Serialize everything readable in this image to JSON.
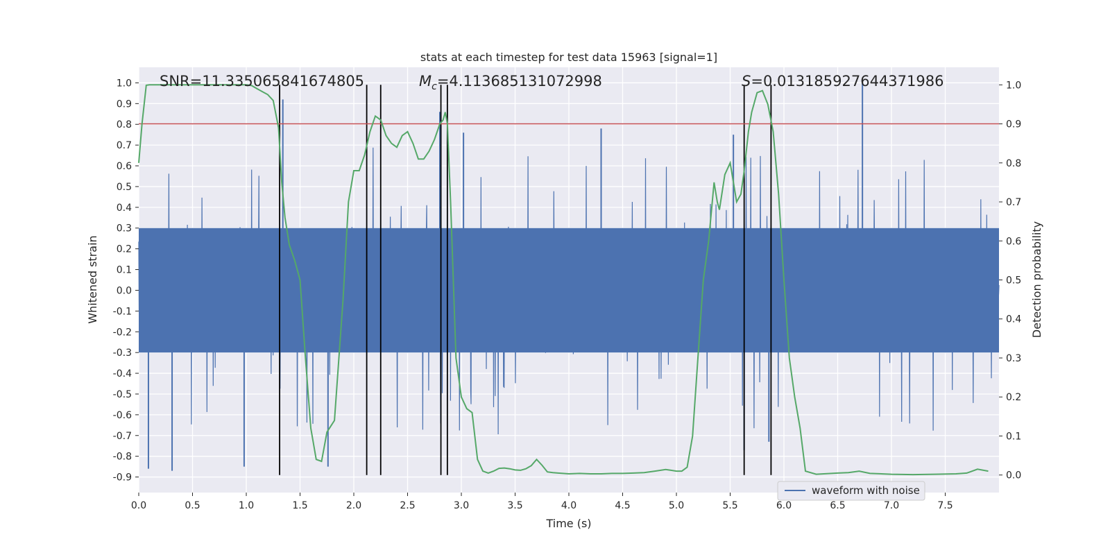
{
  "chart_data": {
    "type": "line",
    "title": "stats at each timestep for test data 15963 [signal=1]",
    "xlabel": "Time (s)",
    "ylabel_left": "Whitened strain",
    "ylabel_right": "Detection probability",
    "xlim": [
      0.0,
      8.0
    ],
    "ylim_left": [
      -0.975,
      1.075
    ],
    "ylim_right": [
      -0.045,
      1.045
    ],
    "xticks": [
      "0.0",
      "0.5",
      "1.0",
      "1.5",
      "2.0",
      "2.5",
      "3.0",
      "3.5",
      "4.0",
      "4.5",
      "5.0",
      "5.5",
      "6.0",
      "6.5",
      "7.0",
      "7.5"
    ],
    "yticks_left": [
      "1.0",
      "0.9",
      "0.8",
      "0.7",
      "0.6",
      "0.5",
      "0.4",
      "0.3",
      "0.2",
      "0.1",
      "0.0",
      "-0.1",
      "-0.2",
      "-0.3",
      "-0.4",
      "-0.5",
      "-0.6",
      "-0.7",
      "-0.8",
      "-0.9"
    ],
    "yticks_right": [
      "1.0",
      "0.9",
      "0.8",
      "0.7",
      "0.6",
      "0.5",
      "0.4",
      "0.3",
      "0.2",
      "0.1",
      "0.0"
    ],
    "grid": true,
    "legend_position": "lower-right",
    "annotations": {
      "snr": "SNR=11.335065841674805",
      "mc_symbol": "M",
      "mc_sub": "c",
      "mc_value": "=4.113685131072998",
      "s_symbol": "S",
      "s_value": "=0.013185927644371986"
    },
    "threshold": {
      "y": 0.9,
      "color": "#c44e52"
    },
    "vertical_lines": [
      1.31,
      2.12,
      2.25,
      2.81,
      2.87,
      5.63,
      5.88
    ],
    "series": [
      {
        "name": "waveform with noise",
        "axis": "left",
        "color": "#4c72b0",
        "description_values": {
          "band_low": -0.3,
          "band_high": 0.3
        },
        "notable_spikes": [
          {
            "x": 1.34,
            "y": 0.92
          },
          {
            "x": 1.76,
            "y": -0.85
          },
          {
            "x": 2.8,
            "y": 0.86
          },
          {
            "x": 3.02,
            "y": 0.76
          },
          {
            "x": 4.3,
            "y": 0.78
          },
          {
            "x": 5.53,
            "y": 0.75
          },
          {
            "x": 6.73,
            "y": 1.0
          },
          {
            "x": 0.09,
            "y": -0.86
          },
          {
            "x": 0.31,
            "y": -0.87
          },
          {
            "x": 0.98,
            "y": -0.85
          },
          {
            "x": 5.63,
            "y": -0.77
          },
          {
            "x": 5.86,
            "y": -0.73
          }
        ]
      },
      {
        "name": "detection probability",
        "axis": "right",
        "color": "#55a868",
        "x": [
          0.0,
          0.03,
          0.07,
          0.1,
          0.13,
          0.2,
          0.3,
          0.5,
          0.7,
          0.9,
          1.0,
          1.05,
          1.1,
          1.2,
          1.25,
          1.3,
          1.33,
          1.36,
          1.4,
          1.45,
          1.5,
          1.55,
          1.6,
          1.65,
          1.7,
          1.75,
          1.82,
          1.9,
          1.95,
          2.0,
          2.05,
          2.1,
          2.15,
          2.2,
          2.25,
          2.3,
          2.35,
          2.4,
          2.45,
          2.5,
          2.55,
          2.6,
          2.65,
          2.7,
          2.75,
          2.8,
          2.83,
          2.85,
          2.87,
          2.9,
          2.95,
          3.0,
          3.05,
          3.1,
          3.15,
          3.2,
          3.25,
          3.3,
          3.35,
          3.4,
          3.45,
          3.5,
          3.55,
          3.6,
          3.65,
          3.7,
          3.75,
          3.8,
          3.85,
          3.9,
          4.0,
          4.1,
          4.2,
          4.3,
          4.4,
          4.5,
          4.6,
          4.7,
          4.8,
          4.9,
          4.95,
          5.0,
          5.05,
          5.1,
          5.15,
          5.2,
          5.25,
          5.3,
          5.35,
          5.38,
          5.4,
          5.45,
          5.5,
          5.53,
          5.56,
          5.6,
          5.63,
          5.67,
          5.7,
          5.75,
          5.8,
          5.85,
          5.9,
          5.95,
          6.0,
          6.05,
          6.1,
          6.15,
          6.2,
          6.3,
          6.5,
          6.6,
          6.7,
          6.8,
          7.0,
          7.2,
          7.4,
          7.6,
          7.7,
          7.8,
          7.9
        ],
        "y": [
          0.8,
          0.9,
          0.999,
          1.0,
          1.0,
          1.0,
          1.0,
          1.0,
          1.0,
          1.0,
          1.0,
          0.998,
          0.99,
          0.975,
          0.96,
          0.89,
          0.75,
          0.66,
          0.59,
          0.55,
          0.5,
          0.3,
          0.12,
          0.04,
          0.035,
          0.11,
          0.14,
          0.45,
          0.7,
          0.78,
          0.78,
          0.82,
          0.88,
          0.92,
          0.91,
          0.87,
          0.85,
          0.84,
          0.87,
          0.88,
          0.85,
          0.81,
          0.81,
          0.83,
          0.86,
          0.9,
          0.91,
          0.93,
          0.9,
          0.7,
          0.3,
          0.2,
          0.17,
          0.16,
          0.04,
          0.01,
          0.005,
          0.01,
          0.017,
          0.018,
          0.016,
          0.013,
          0.012,
          0.016,
          0.024,
          0.04,
          0.025,
          0.008,
          0.006,
          0.005,
          0.003,
          0.004,
          0.003,
          0.003,
          0.004,
          0.004,
          0.005,
          0.006,
          0.01,
          0.014,
          0.012,
          0.01,
          0.01,
          0.02,
          0.1,
          0.3,
          0.5,
          0.6,
          0.75,
          0.7,
          0.68,
          0.77,
          0.8,
          0.75,
          0.7,
          0.72,
          0.78,
          0.88,
          0.93,
          0.98,
          0.985,
          0.95,
          0.88,
          0.72,
          0.5,
          0.3,
          0.2,
          0.12,
          0.01,
          0.002,
          0.005,
          0.006,
          0.01,
          0.004,
          0.002,
          0.001,
          0.002,
          0.003,
          0.005,
          0.015,
          0.01
        ]
      }
    ]
  }
}
